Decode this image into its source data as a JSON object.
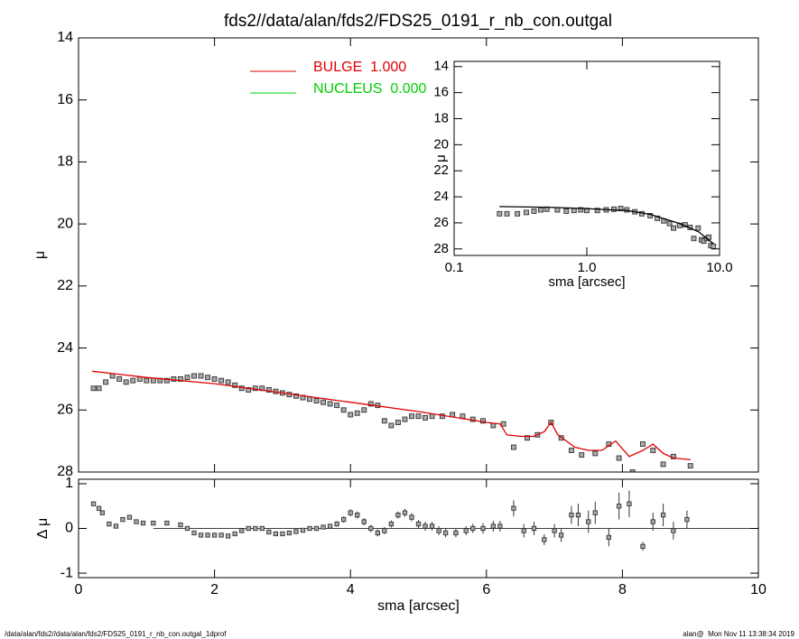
{
  "chart_data": [
    {
      "type": "profile",
      "title": "fds2//data/alan/fds2/FDS25_0191_r_nb_con.outgal",
      "ylabel": "μ",
      "xlim": [
        0,
        10
      ],
      "ylim": [
        28,
        14
      ],
      "yticks": [
        14,
        16,
        18,
        20,
        22,
        24,
        26,
        28
      ],
      "legend": [
        {
          "label": "BULGE  1.000",
          "color": "#e00000"
        },
        {
          "label": "NUCLEUS  0.000",
          "color": "#00d000"
        }
      ],
      "series": [
        {
          "color": "#333333",
          "marker": "square",
          "x": [
            0.22,
            0.3,
            0.4,
            0.5,
            0.6,
            0.7,
            0.8,
            0.9,
            1.0,
            1.1,
            1.2,
            1.3,
            1.4,
            1.5,
            1.6,
            1.7,
            1.8,
            1.9,
            2.0,
            2.1,
            2.2,
            2.3,
            2.4,
            2.5,
            2.6,
            2.7,
            2.8,
            2.9,
            3.0,
            3.1,
            3.2,
            3.3,
            3.4,
            3.5,
            3.6,
            3.7,
            3.8,
            3.9,
            4.0,
            4.1,
            4.2,
            4.3,
            4.4,
            4.5,
            4.6,
            4.7,
            4.8,
            4.9,
            5.0,
            5.1,
            5.2,
            5.35,
            5.5,
            5.65,
            5.8,
            5.95,
            6.1,
            6.25,
            6.4,
            6.6,
            6.75,
            6.95,
            7.1,
            7.25,
            7.4,
            7.6,
            7.8,
            7.95,
            8.15,
            8.3,
            8.45,
            8.6,
            8.75,
            9.0
          ],
          "values": [
            25.3,
            25.3,
            25.1,
            24.9,
            25.0,
            25.1,
            25.05,
            25.0,
            25.05,
            25.05,
            25.05,
            25.05,
            25.0,
            25.0,
            24.95,
            24.9,
            24.9,
            24.95,
            25.0,
            25.05,
            25.1,
            25.2,
            25.3,
            25.35,
            25.3,
            25.3,
            25.35,
            25.4,
            25.45,
            25.5,
            25.55,
            25.6,
            25.65,
            25.7,
            25.75,
            25.8,
            25.85,
            26.0,
            26.15,
            26.1,
            26.0,
            25.8,
            25.85,
            26.35,
            26.5,
            26.4,
            26.3,
            26.2,
            26.2,
            26.25,
            26.2,
            26.2,
            26.15,
            26.2,
            26.3,
            26.35,
            26.5,
            26.45,
            27.2,
            26.9,
            26.8,
            26.4,
            26.9,
            27.3,
            27.45,
            27.4,
            27.1,
            27.55,
            28.0,
            27.1,
            27.3,
            27.75,
            27.5,
            27.8
          ]
        },
        {
          "color": "#e00000",
          "x": [
            0.2,
            1,
            2,
            3,
            4,
            5,
            6,
            6.2,
            6.3,
            6.5,
            6.7,
            6.85,
            6.95,
            7.05,
            7.3,
            7.5,
            7.7,
            7.9,
            8.1,
            8.3,
            8.45,
            8.6,
            8.75,
            9.0
          ],
          "values": [
            24.75,
            24.95,
            25.15,
            25.45,
            25.75,
            26.05,
            26.4,
            26.45,
            26.8,
            26.85,
            26.85,
            26.7,
            26.4,
            26.8,
            27.2,
            27.3,
            27.3,
            27.0,
            27.5,
            27.3,
            27.1,
            27.4,
            27.55,
            27.6
          ]
        }
      ]
    },
    {
      "type": "errorbar",
      "ylabel": "Δ μ",
      "xlabel": "sma [arcsec]",
      "xlim": [
        0,
        10
      ],
      "xticks": [
        0,
        2,
        4,
        6,
        8,
        10
      ],
      "ylim": [
        -1.1,
        1.1
      ],
      "yticks": [
        -1,
        0,
        1
      ],
      "x": [
        0.22,
        0.3,
        0.35,
        0.45,
        0.55,
        0.65,
        0.75,
        0.85,
        0.95,
        1.1,
        1.3,
        1.5,
        1.6,
        1.7,
        1.8,
        1.9,
        2.0,
        2.1,
        2.2,
        2.3,
        2.4,
        2.5,
        2.6,
        2.7,
        2.8,
        2.9,
        3.0,
        3.1,
        3.2,
        3.3,
        3.4,
        3.5,
        3.6,
        3.7,
        3.8,
        3.9,
        4.0,
        4.1,
        4.2,
        4.3,
        4.4,
        4.5,
        4.6,
        4.7,
        4.8,
        4.9,
        5.0,
        5.1,
        5.2,
        5.3,
        5.4,
        5.55,
        5.7,
        5.8,
        5.95,
        6.1,
        6.2,
        6.4,
        6.55,
        6.7,
        6.85,
        7.0,
        7.1,
        7.25,
        7.35,
        7.5,
        7.6,
        7.8,
        7.95,
        8.1,
        8.3,
        8.45,
        8.6,
        8.75,
        8.95
      ],
      "values": [
        0.55,
        0.45,
        0.35,
        0.1,
        0.05,
        0.2,
        0.25,
        0.15,
        0.12,
        0.12,
        0.12,
        0.08,
        0,
        -0.1,
        -0.15,
        -0.15,
        -0.15,
        -0.15,
        -0.17,
        -0.12,
        -0.05,
        0,
        0,
        0,
        -0.08,
        -0.12,
        -0.12,
        -0.1,
        -0.07,
        -0.04,
        0,
        0,
        0.03,
        0.05,
        0.1,
        0.2,
        0.35,
        0.3,
        0.15,
        0,
        -0.1,
        -0.05,
        0.1,
        0.3,
        0.35,
        0.25,
        0.1,
        0.05,
        0.05,
        -0.05,
        -0.1,
        -0.1,
        -0.05,
        0,
        0,
        0.05,
        0.05,
        0.45,
        -0.05,
        0,
        -0.25,
        -0.05,
        -0.15,
        0.3,
        0.3,
        0.15,
        0.35,
        -0.2,
        0.5,
        0.55,
        -0.4,
        0.15,
        0.3,
        -0.05,
        0.2
      ],
      "errors": [
        0.05,
        0.05,
        0.05,
        0.04,
        0.03,
        0.03,
        0.03,
        0.03,
        0.03,
        0.03,
        0.03,
        0.03,
        0.03,
        0.03,
        0.03,
        0.03,
        0.03,
        0.03,
        0.03,
        0.03,
        0.04,
        0.04,
        0.04,
        0.04,
        0.04,
        0.04,
        0.04,
        0.04,
        0.04,
        0.04,
        0.05,
        0.05,
        0.05,
        0.05,
        0.06,
        0.07,
        0.08,
        0.08,
        0.08,
        0.08,
        0.08,
        0.08,
        0.08,
        0.08,
        0.09,
        0.09,
        0.09,
        0.1,
        0.1,
        0.1,
        0.1,
        0.1,
        0.1,
        0.1,
        0.12,
        0.12,
        0.12,
        0.18,
        0.15,
        0.15,
        0.12,
        0.15,
        0.15,
        0.2,
        0.25,
        0.25,
        0.25,
        0.2,
        0.3,
        0.3,
        0.1,
        0.2,
        0.25,
        0.2,
        0.2
      ]
    },
    {
      "type": "profile",
      "ylabel": "μ",
      "xlabel": "sma [arcsec]",
      "xlog": true,
      "xlim": [
        0.1,
        10
      ],
      "xticks": [
        0.1,
        {
          "value": 1,
          "label": "1.0"
        },
        {
          "value": 10,
          "label": "10.0"
        }
      ],
      "ylim": [
        28.5,
        13.6
      ],
      "yticks": [
        14,
        16,
        18,
        20,
        22,
        24,
        26,
        28
      ],
      "series": [
        {
          "color": "#333333",
          "marker": "square",
          "x": [
            0.22,
            0.25,
            0.3,
            0.35,
            0.4,
            0.45,
            0.5,
            0.6,
            0.7,
            0.8,
            0.9,
            1.0,
            1.2,
            1.4,
            1.6,
            1.8,
            2.0,
            2.3,
            2.6,
            3.0,
            3.4,
            3.8,
            4.2,
            4.5,
            5.0,
            5.5,
            6.0,
            6.4,
            6.9,
            7.3,
            7.6,
            8.0,
            8.3,
            8.6,
            9.0
          ],
          "values": [
            25.3,
            25.3,
            25.3,
            25.2,
            25.1,
            25.0,
            24.95,
            25.0,
            25.1,
            25.05,
            25.0,
            25.05,
            25.05,
            25.0,
            24.95,
            24.9,
            25.0,
            25.15,
            25.3,
            25.45,
            25.65,
            25.85,
            26.05,
            26.4,
            26.2,
            26.15,
            26.35,
            27.2,
            26.4,
            27.3,
            27.4,
            27.2,
            27.1,
            27.75,
            27.8
          ]
        },
        {
          "color": "#000000",
          "x": [
            0.22,
            0.5,
            1,
            1.5,
            2,
            3,
            4,
            5,
            6,
            7,
            8,
            9
          ],
          "values": [
            24.75,
            24.8,
            24.9,
            25.0,
            25.05,
            25.35,
            25.75,
            26.05,
            26.4,
            26.7,
            27.2,
            27.6
          ]
        }
      ]
    }
  ],
  "footer": {
    "left": "/data/alan/fds2//data/alan/fds2/FDS25_0191_r_nb_con.outgal_1dprof",
    "right": "alan@  Mon Nov 11 13:38:34 2019"
  }
}
